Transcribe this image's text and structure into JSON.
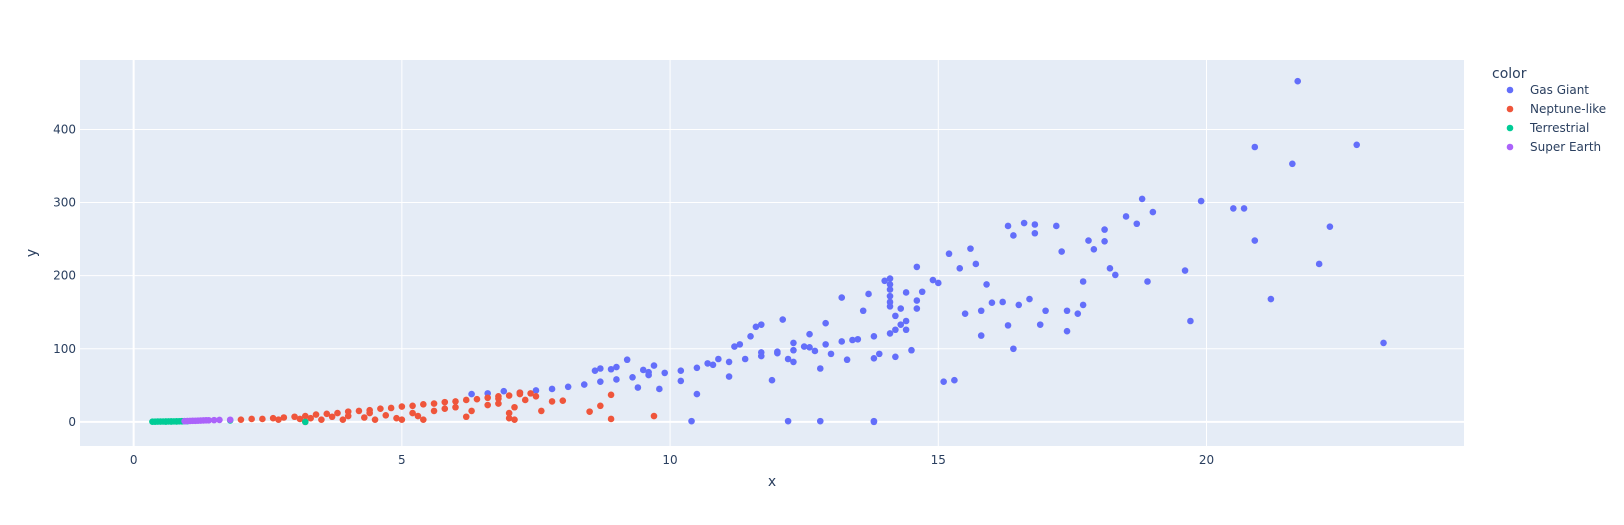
{
  "chart_data": {
    "type": "scatter",
    "xlabel": "x",
    "ylabel": "y",
    "xlim": [
      -1,
      24.8
    ],
    "ylim": [
      -33,
      495
    ],
    "x_ticks": [
      0,
      5,
      10,
      15,
      20
    ],
    "y_ticks": [
      0,
      100,
      200,
      300,
      400
    ],
    "grid": true,
    "legend": {
      "title": "color",
      "placement": "right"
    },
    "series": [
      {
        "name": "Gas Giant",
        "color": "#636efa",
        "points": [
          [
            6.3,
            38
          ],
          [
            6.6,
            39
          ],
          [
            6.9,
            42
          ],
          [
            7.2,
            40
          ],
          [
            7.5,
            43
          ],
          [
            7.8,
            45
          ],
          [
            8.1,
            48
          ],
          [
            8.4,
            51
          ],
          [
            8.7,
            55
          ],
          [
            9.0,
            58
          ],
          [
            9.3,
            61
          ],
          [
            9.6,
            64
          ],
          [
            9.9,
            67
          ],
          [
            10.2,
            70
          ],
          [
            10.5,
            74
          ],
          [
            10.8,
            78
          ],
          [
            11.1,
            82
          ],
          [
            11.4,
            86
          ],
          [
            11.7,
            90
          ],
          [
            12.0,
            94
          ],
          [
            12.3,
            98
          ],
          [
            12.6,
            102
          ],
          [
            12.9,
            106
          ],
          [
            13.2,
            110
          ],
          [
            13.5,
            113
          ],
          [
            13.8,
            117
          ],
          [
            14.1,
            121
          ],
          [
            14.4,
            126
          ],
          [
            8.6,
            70
          ],
          [
            8.7,
            73
          ],
          [
            8.9,
            72
          ],
          [
            9.0,
            75
          ],
          [
            9.2,
            85
          ],
          [
            9.4,
            47
          ],
          [
            9.5,
            71
          ],
          [
            9.6,
            68
          ],
          [
            9.7,
            77
          ],
          [
            9.8,
            45
          ],
          [
            10.2,
            56
          ],
          [
            10.4,
            1
          ],
          [
            10.5,
            38
          ],
          [
            10.7,
            80
          ],
          [
            10.9,
            86
          ],
          [
            11.2,
            103
          ],
          [
            11.3,
            106
          ],
          [
            11.1,
            62
          ],
          [
            11.5,
            117
          ],
          [
            11.6,
            130
          ],
          [
            11.7,
            133
          ],
          [
            11.7,
            95
          ],
          [
            11.9,
            57
          ],
          [
            12.0,
            96
          ],
          [
            12.1,
            140
          ],
          [
            12.2,
            86
          ],
          [
            12.3,
            108
          ],
          [
            12.3,
            82
          ],
          [
            12.5,
            103
          ],
          [
            12.6,
            120
          ],
          [
            12.7,
            97
          ],
          [
            12.8,
            73
          ],
          [
            12.9,
            135
          ],
          [
            13.0,
            93
          ],
          [
            13.2,
            170
          ],
          [
            13.3,
            85
          ],
          [
            13.4,
            112
          ],
          [
            13.6,
            152
          ],
          [
            13.7,
            175
          ],
          [
            13.8,
            87
          ],
          [
            13.9,
            93
          ],
          [
            14.0,
            193
          ],
          [
            14.1,
            172
          ],
          [
            14.1,
            188
          ],
          [
            14.1,
            196
          ],
          [
            14.1,
            181
          ],
          [
            14.1,
            164
          ],
          [
            14.1,
            158
          ],
          [
            14.2,
            145
          ],
          [
            14.2,
            126
          ],
          [
            14.2,
            89
          ],
          [
            14.3,
            133
          ],
          [
            14.3,
            155
          ],
          [
            14.4,
            177
          ],
          [
            14.4,
            138
          ],
          [
            14.5,
            98
          ],
          [
            14.6,
            166
          ],
          [
            14.6,
            155
          ],
          [
            14.6,
            212
          ],
          [
            14.7,
            178
          ],
          [
            14.9,
            194
          ],
          [
            15.0,
            190
          ],
          [
            15.1,
            55
          ],
          [
            15.2,
            230
          ],
          [
            15.3,
            57
          ],
          [
            15.4,
            210
          ],
          [
            15.5,
            148
          ],
          [
            15.6,
            237
          ],
          [
            15.7,
            216
          ],
          [
            15.8,
            118
          ],
          [
            15.8,
            152
          ],
          [
            15.9,
            188
          ],
          [
            16.0,
            163
          ],
          [
            16.2,
            164
          ],
          [
            16.3,
            268
          ],
          [
            16.3,
            132
          ],
          [
            16.4,
            100
          ],
          [
            16.4,
            255
          ],
          [
            16.5,
            160
          ],
          [
            16.6,
            272
          ],
          [
            16.7,
            168
          ],
          [
            16.8,
            270
          ],
          [
            16.8,
            258
          ],
          [
            16.9,
            133
          ],
          [
            17.0,
            152
          ],
          [
            17.2,
            268
          ],
          [
            17.3,
            233
          ],
          [
            17.4,
            124
          ],
          [
            17.4,
            152
          ],
          [
            17.6,
            148
          ],
          [
            17.7,
            160
          ],
          [
            17.7,
            192
          ],
          [
            17.8,
            248
          ],
          [
            17.9,
            236
          ],
          [
            18.1,
            263
          ],
          [
            18.1,
            247
          ],
          [
            18.2,
            210
          ],
          [
            18.3,
            201
          ],
          [
            18.5,
            281
          ],
          [
            18.7,
            271
          ],
          [
            18.8,
            305
          ],
          [
            18.9,
            192
          ],
          [
            19.0,
            287
          ],
          [
            19.6,
            207
          ],
          [
            19.7,
            138
          ],
          [
            19.9,
            302
          ],
          [
            20.5,
            292
          ],
          [
            20.7,
            292
          ],
          [
            20.9,
            376
          ],
          [
            20.9,
            248
          ],
          [
            21.2,
            168
          ],
          [
            21.6,
            353
          ],
          [
            21.7,
            466
          ],
          [
            22.1,
            216
          ],
          [
            22.3,
            267
          ],
          [
            22.8,
            379
          ],
          [
            23.3,
            108
          ],
          [
            12.2,
            1
          ],
          [
            12.8,
            1
          ],
          [
            13.8,
            1
          ],
          [
            13.8,
            0
          ]
        ]
      },
      {
        "name": "Neptune-like",
        "color": "#EF553B",
        "points": [
          [
            2.0,
            3
          ],
          [
            2.2,
            4
          ],
          [
            2.4,
            4
          ],
          [
            2.6,
            5
          ],
          [
            2.8,
            6
          ],
          [
            3.0,
            7
          ],
          [
            3.2,
            8
          ],
          [
            3.4,
            10
          ],
          [
            3.6,
            11
          ],
          [
            3.8,
            12
          ],
          [
            4.0,
            14
          ],
          [
            4.2,
            15
          ],
          [
            4.4,
            16
          ],
          [
            4.6,
            18
          ],
          [
            4.8,
            19
          ],
          [
            5.0,
            21
          ],
          [
            5.2,
            22
          ],
          [
            5.4,
            24
          ],
          [
            5.6,
            25
          ],
          [
            5.8,
            27
          ],
          [
            6.0,
            28
          ],
          [
            6.2,
            30
          ],
          [
            6.4,
            31
          ],
          [
            6.6,
            33
          ],
          [
            6.8,
            35
          ],
          [
            7.0,
            36
          ],
          [
            7.2,
            38
          ],
          [
            7.4,
            39
          ],
          [
            2.7,
            3
          ],
          [
            3.1,
            4
          ],
          [
            3.3,
            5
          ],
          [
            3.5,
            3
          ],
          [
            3.7,
            7
          ],
          [
            4.0,
            8
          ],
          [
            4.3,
            6
          ],
          [
            4.5,
            3
          ],
          [
            4.7,
            9
          ],
          [
            4.9,
            5
          ],
          [
            5.2,
            12
          ],
          [
            5.3,
            8
          ],
          [
            5.4,
            3
          ],
          [
            5.6,
            15
          ],
          [
            5.8,
            18
          ],
          [
            6.0,
            20
          ],
          [
            6.2,
            7
          ],
          [
            6.3,
            15
          ],
          [
            6.6,
            23
          ],
          [
            6.8,
            25
          ],
          [
            7.0,
            12
          ],
          [
            7.0,
            5
          ],
          [
            7.1,
            3
          ],
          [
            7.1,
            20
          ],
          [
            7.3,
            30
          ],
          [
            7.5,
            35
          ],
          [
            7.6,
            15
          ],
          [
            7.8,
            28
          ],
          [
            8.0,
            29
          ],
          [
            8.5,
            14
          ],
          [
            8.7,
            22
          ],
          [
            8.9,
            4
          ],
          [
            8.9,
            37
          ],
          [
            9.7,
            8
          ],
          [
            6.8,
            32
          ],
          [
            7.2,
            40
          ],
          [
            3.2,
            0
          ],
          [
            3.9,
            3
          ],
          [
            4.4,
            12
          ],
          [
            5.0,
            3
          ]
        ]
      },
      {
        "name": "Terrestrial",
        "color": "#00cc96",
        "points": [
          [
            0.35,
            0.3
          ],
          [
            0.4,
            0.3
          ],
          [
            0.45,
            0.4
          ],
          [
            0.5,
            0.4
          ],
          [
            0.55,
            0.5
          ],
          [
            0.6,
            0.5
          ],
          [
            0.65,
            0.6
          ],
          [
            0.7,
            0.6
          ],
          [
            0.75,
            0.7
          ],
          [
            0.8,
            0.7
          ],
          [
            0.85,
            0.8
          ],
          [
            0.9,
            0.9
          ],
          [
            0.95,
            1.0
          ],
          [
            1.0,
            1.0
          ],
          [
            0.6,
            0.4
          ],
          [
            0.7,
            0.5
          ],
          [
            0.8,
            0.6
          ],
          [
            0.9,
            0.8
          ],
          [
            1.8,
            2
          ],
          [
            3.2,
            0
          ]
        ]
      },
      {
        "name": "Super Earth",
        "color": "#ab63fa",
        "points": [
          [
            0.95,
            1
          ],
          [
            1.0,
            1.2
          ],
          [
            1.05,
            1.3
          ],
          [
            1.1,
            1.4
          ],
          [
            1.2,
            1.6
          ],
          [
            1.25,
            1.8
          ],
          [
            1.3,
            2
          ],
          [
            1.4,
            2.2
          ],
          [
            1.5,
            2.4
          ],
          [
            1.6,
            2.7
          ],
          [
            1.8,
            2.9
          ],
          [
            1.15,
            1.5
          ],
          [
            1.35,
            2.1
          ]
        ]
      }
    ]
  }
}
